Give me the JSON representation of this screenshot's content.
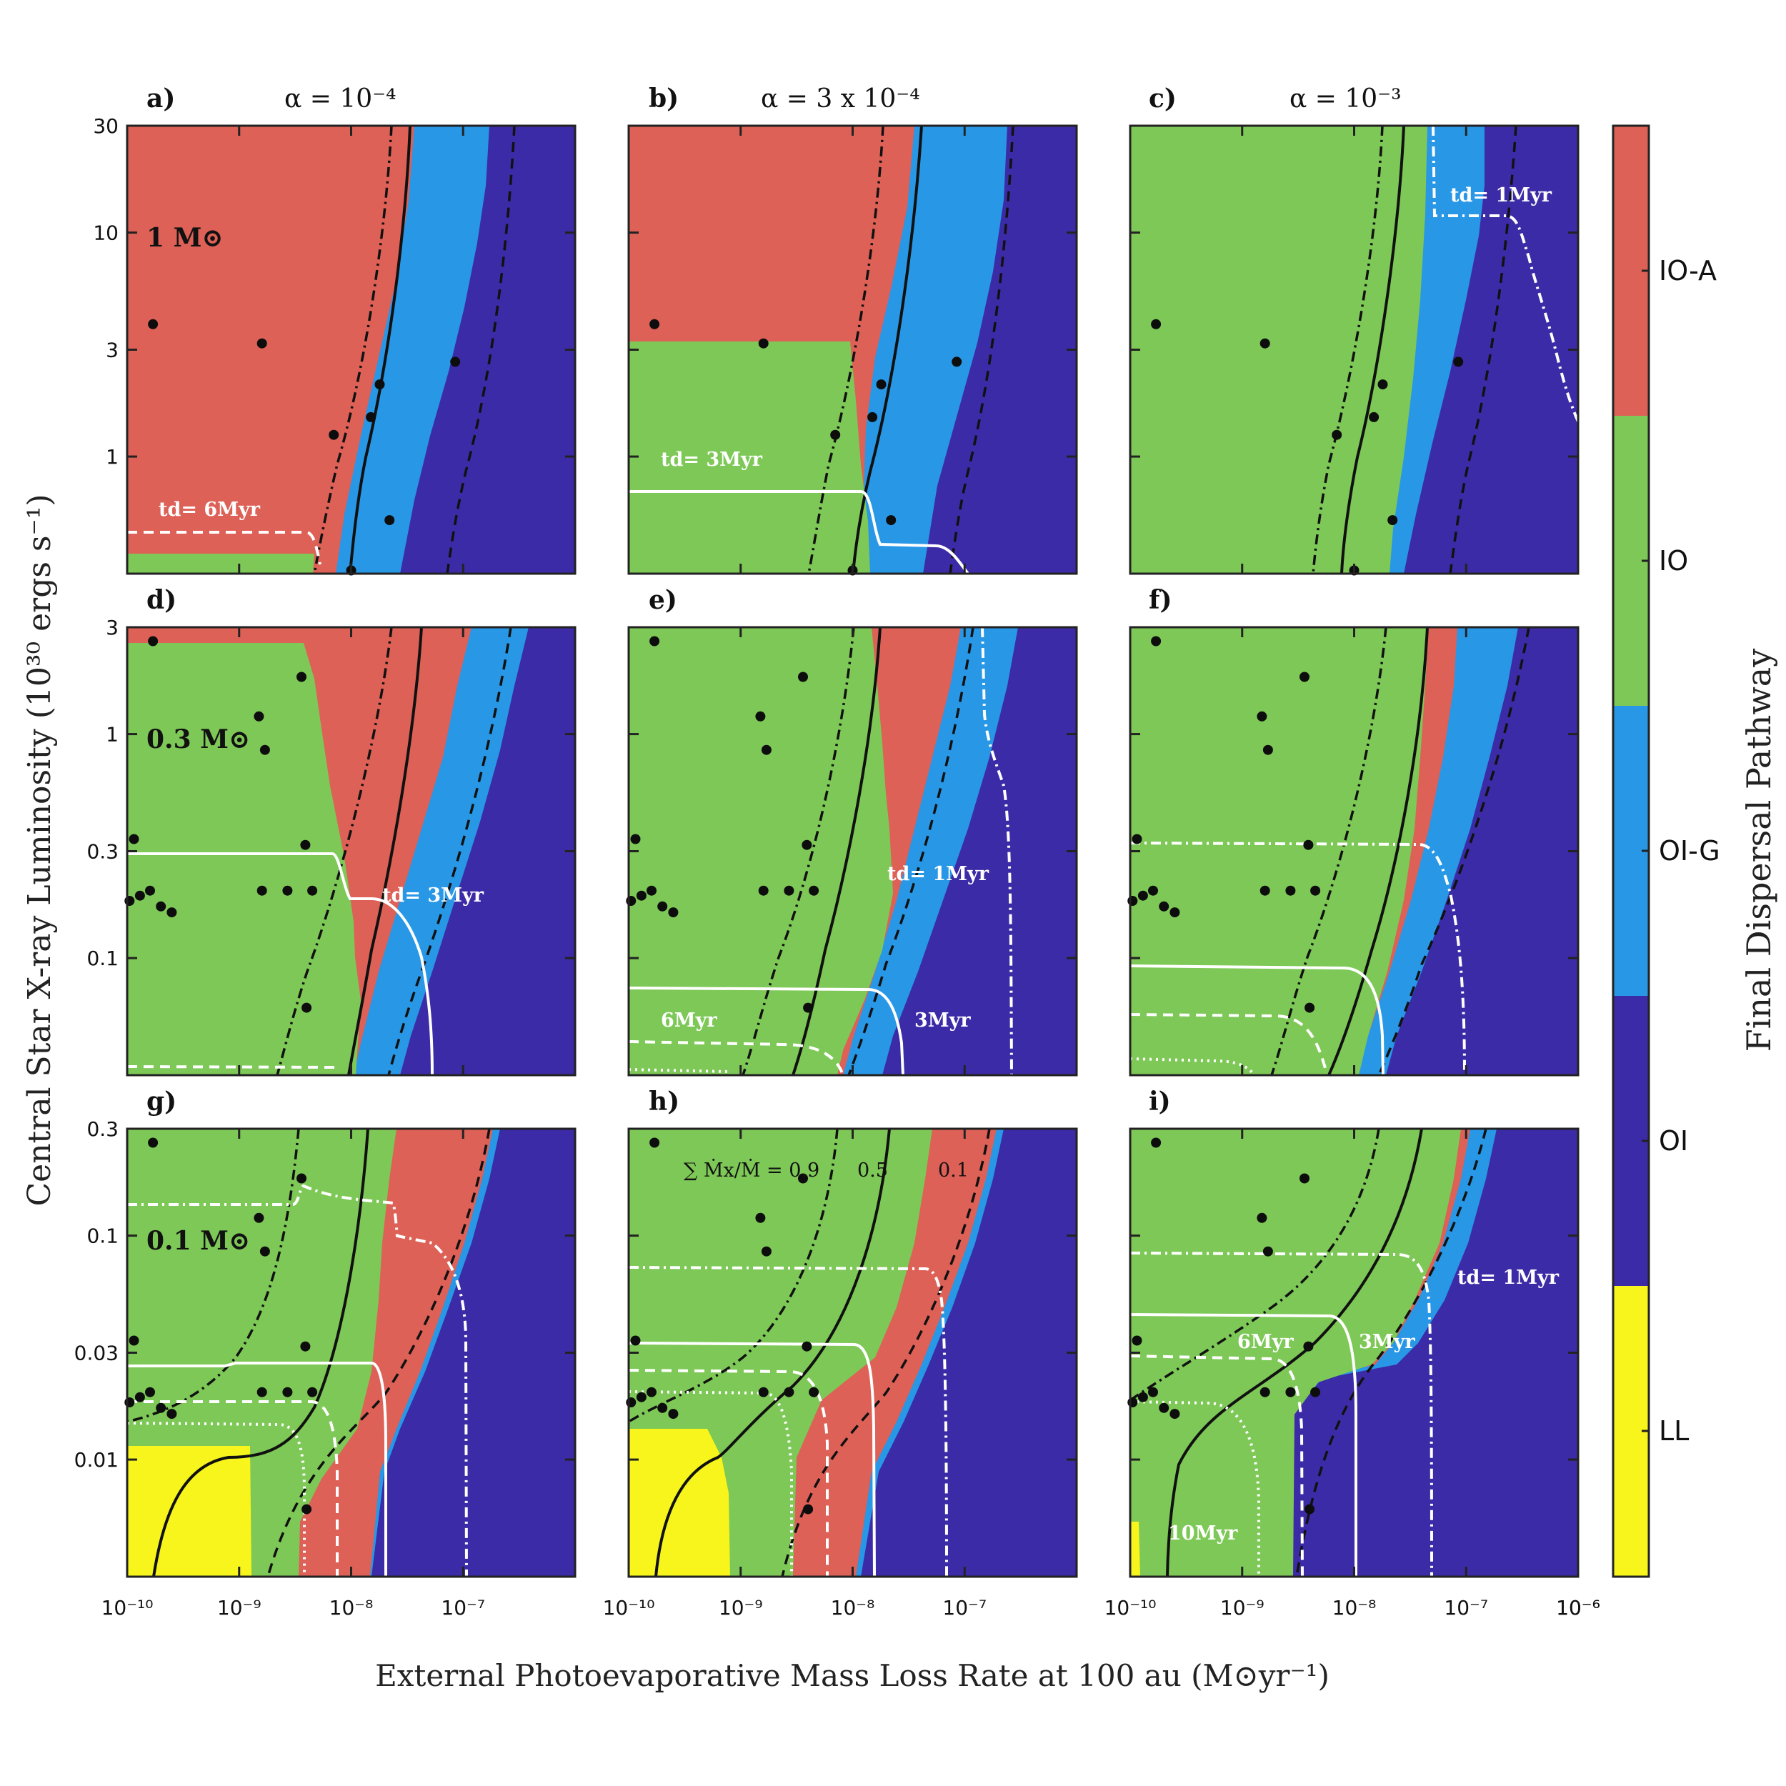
{
  "figure": {
    "xlabel": "External Photoevaporative Mass Loss Rate at 100 au (M⊙yr⁻¹)",
    "ylabel": "Central Star X-ray Luminosity (10³⁰ ergs s⁻¹)",
    "colorbar_label": "Final Dispersal Pathway",
    "column_titles": [
      "α = 10⁻⁴",
      "α = 3 x 10⁻⁴",
      "α = 10⁻³"
    ],
    "row_masses": [
      "1 M⊙",
      "0.3 M⊙",
      "0.1 M⊙"
    ],
    "x_ticks": [
      "10⁻¹⁰",
      "10⁻⁹",
      "10⁻⁸",
      "10⁻⁷",
      "10⁻⁶"
    ],
    "y_ticks_rows": [
      [
        "1",
        "3",
        "10",
        "30"
      ],
      [
        "0.1",
        "0.3",
        "1",
        "3"
      ],
      [
        "0.01",
        "0.03",
        "0.1",
        "0.3"
      ]
    ],
    "sum_label": "∑ Ṁx/Ṁ = 0.9",
    "sum_label_05": "0.5",
    "sum_label_01": "0.1"
  },
  "chart_data": {
    "type": "heatmap",
    "x_scale": "log",
    "y_scale": "log",
    "xlim": [
      1e-10,
      1e-06
    ],
    "categories_colorbar": [
      {
        "name": "IO-A",
        "color": "#dd6157"
      },
      {
        "name": "IO",
        "color": "#7ec857"
      },
      {
        "name": "OI-G",
        "color": "#2897e6"
      },
      {
        "name": "OI",
        "color": "#3c2ba6"
      },
      {
        "name": "LL",
        "color": "#f7f51c"
      }
    ],
    "panels": [
      {
        "label": "a)",
        "alpha": "10^-4",
        "mass": "1",
        "ylim": [
          0.3,
          30
        ],
        "annotations": [
          "td= 6Myr"
        ]
      },
      {
        "label": "b)",
        "alpha": "3e-4",
        "mass": "1",
        "ylim": [
          0.3,
          30
        ],
        "annotations": [
          "td= 3Myr"
        ]
      },
      {
        "label": "c)",
        "alpha": "10^-3",
        "mass": "1",
        "ylim": [
          0.3,
          30
        ],
        "annotations": [
          "td= 1Myr"
        ]
      },
      {
        "label": "d)",
        "alpha": "10^-4",
        "mass": "0.3",
        "ylim": [
          0.03,
          3
        ],
        "annotations": [
          "td= 3Myr"
        ]
      },
      {
        "label": "e)",
        "alpha": "3e-4",
        "mass": "0.3",
        "ylim": [
          0.03,
          3
        ],
        "annotations": [
          "td= 1Myr",
          "6Myr",
          "3Myr"
        ]
      },
      {
        "label": "f)",
        "alpha": "10^-3",
        "mass": "0.3",
        "ylim": [
          0.03,
          3
        ],
        "annotations": []
      },
      {
        "label": "g)",
        "alpha": "10^-4",
        "mass": "0.1",
        "ylim": [
          0.003,
          0.3
        ],
        "annotations": []
      },
      {
        "label": "h)",
        "alpha": "3e-4",
        "mass": "0.1",
        "ylim": [
          0.003,
          0.3
        ],
        "annotations": [
          "0.9",
          "0.5",
          "0.1"
        ]
      },
      {
        "label": "i)",
        "alpha": "10^-3",
        "mass": "0.1",
        "ylim": [
          0.003,
          0.3
        ],
        "annotations": [
          "td= 1Myr",
          "6Myr",
          "3Myr",
          "10Myr"
        ]
      }
    ],
    "data_points_row1": [
      [
        1.7e-10,
        3.9
      ],
      [
        1.6e-09,
        3.2
      ],
      [
        7e-09,
        1.25
      ],
      [
        1.5e-08,
        1.5
      ],
      [
        1.8e-08,
        2.1
      ],
      [
        2.2e-08,
        0.52
      ],
      [
        8.5e-08,
        2.65
      ],
      [
        1e-08,
        0.31
      ]
    ],
    "data_points_rows23_frac": [
      [
        1.7e-10,
        2.6
      ],
      [
        1.15e-10,
        0.34
      ],
      [
        1.3e-10,
        0.19
      ],
      [
        1.6e-09,
        0.2
      ],
      [
        1.7e-09,
        0.85
      ],
      [
        2.7e-09,
        0.2
      ],
      [
        3.6e-09,
        1.8
      ],
      [
        3.9e-09,
        0.32
      ],
      [
        1.5e-09,
        1.2
      ],
      [
        4.5e-09,
        0.2
      ],
      [
        4e-09,
        0.06
      ],
      [
        2e-10,
        0.17
      ],
      [
        2.5e-10,
        0.16
      ],
      [
        1.05e-10,
        0.18
      ],
      [
        1.6e-10,
        0.2
      ]
    ]
  },
  "labels": {
    "td6": "td= 6Myr",
    "td3": "td= 3Myr",
    "td1": "td= 1Myr",
    "m6": "6Myr",
    "m3": "3Myr",
    "m10": "10Myr"
  }
}
